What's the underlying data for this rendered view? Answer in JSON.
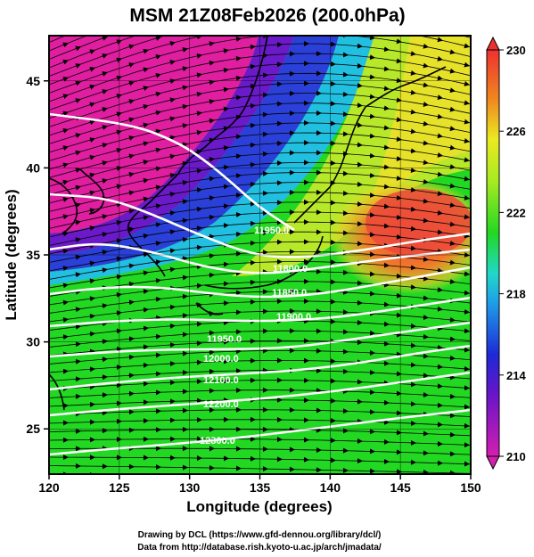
{
  "title": "MSM 21Z08Feb2026 (200.0hPa)",
  "axes": {
    "xlabel": "Longitude (degrees)",
    "ylabel": "Latitude  (degrees)",
    "xlim": [
      120,
      150
    ],
    "ylim": [
      22.4,
      47.6
    ],
    "xticks": [
      "120",
      "125",
      "130",
      "135",
      "140",
      "145",
      "150"
    ],
    "yticks": [
      "25",
      "30",
      "35",
      "40",
      "45"
    ]
  },
  "colorbar": {
    "range": [
      210,
      230
    ],
    "labels": [
      "230",
      "226",
      "222",
      "218",
      "214",
      "210"
    ]
  },
  "contour_labels": [
    "11950.0",
    "11800.0",
    "11850.0",
    "11900.0",
    "11950.0",
    "12000.0",
    "12100.0",
    "12200.0",
    "12300.0"
  ],
  "credits": {
    "line1": "Drawing by DCL (https://www.gfd-dennou.org/library/dcl/)",
    "line2": "Data from http://database.rish.kyoto-u.ac.jp/arch/jmadata/"
  },
  "colors": {
    "magenta": "#e2189c",
    "blue": "#2a2ad8",
    "cyan": "#22c8e0",
    "green": "#22dc22",
    "yellow": "#e6e62a",
    "orange": "#f08a1e",
    "red": "#ec4040"
  }
}
